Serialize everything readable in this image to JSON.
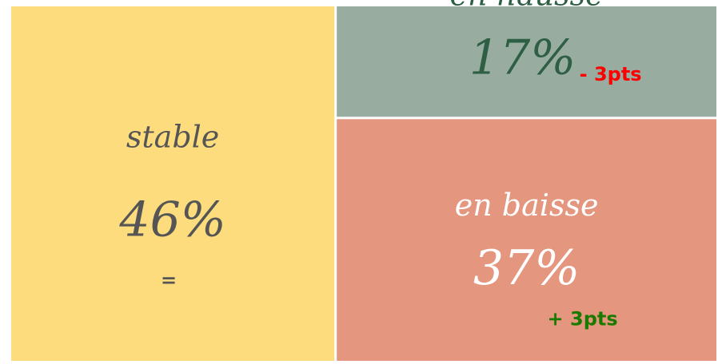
{
  "chart_data": {
    "type": "treemap",
    "categories": [
      "stable",
      "en hausse",
      "en baisse"
    ],
    "values": [
      46,
      17,
      37
    ],
    "value_labels": [
      "46%",
      "17%",
      "37%"
    ],
    "colors": [
      "#fddc7e",
      "#98ada0",
      "#e4967e"
    ],
    "text_colors": [
      "#555555",
      "#2e5e44",
      "#ffffff"
    ],
    "changes": [
      "=",
      "- 3pts",
      "+ 3pts"
    ],
    "change_colors": [
      "#555555",
      "#ff0000",
      "#1a7a00"
    ]
  }
}
